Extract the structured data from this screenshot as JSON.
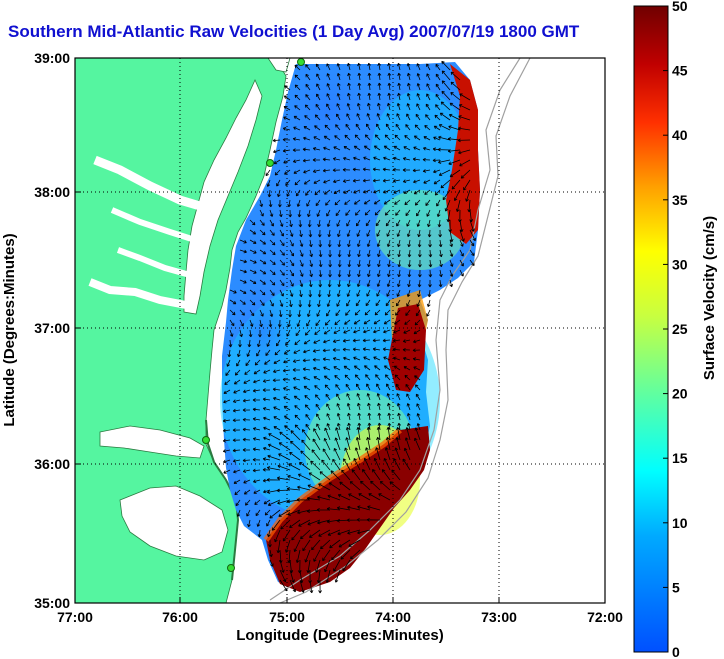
{
  "title": "Southern Mid-Atlantic Raw Velocities (1 Day Avg) 2007/07/19 1800 GMT",
  "map": {
    "xlabel": "Longitude (Degrees:Minutes)",
    "ylabel": "Latitude (Degrees:Minutes)",
    "lon_ticks": [
      "77:00",
      "76:00",
      "75:00",
      "74:00",
      "73:00",
      "72:00"
    ],
    "lat_ticks": [
      "39:00",
      "38:00",
      "37:00",
      "36:00",
      "35:00"
    ],
    "lon_range": [
      -77,
      -72
    ],
    "lat_range": [
      35,
      39
    ],
    "grid": true
  },
  "colorbar": {
    "label": "Surface Velocity (cm/s)",
    "ticks": [
      "50",
      "45",
      "40",
      "35",
      "30",
      "25",
      "20",
      "15",
      "10",
      "5",
      "0"
    ],
    "range": [
      0,
      50
    ],
    "colormap": "jet"
  },
  "colors": {
    "land": "#55f5a0",
    "title": "#1010d0",
    "station": "#33dd33"
  }
}
